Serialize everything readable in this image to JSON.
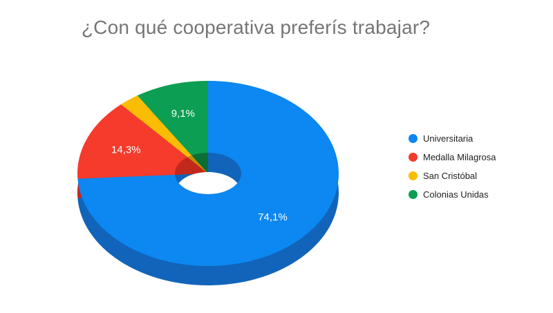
{
  "title": "¿Con qué cooperativa preferís trabajar?",
  "chart_data": {
    "type": "pie",
    "style": "3d-donut",
    "title": "¿Con qué cooperativa preferís trabajar?",
    "legend_position": "right",
    "start_angle_deg": 0,
    "direction": "clockwise",
    "slices": [
      {
        "name": "Universitaria",
        "value": 74.1,
        "label": "74,1%",
        "color": "#0D87F1",
        "dark": "#1164BA"
      },
      {
        "name": "Medalla Milagrosa",
        "value": 14.3,
        "label": "14,3%",
        "color": "#F43B2C",
        "dark": "#C2281C"
      },
      {
        "name": "San Cristóbal",
        "value": 2.5,
        "label": "",
        "color": "#FBBC04",
        "dark": "#C08E02"
      },
      {
        "name": "Colonias Unidas",
        "value": 9.1,
        "label": "9,1%",
        "color": "#0C9E52",
        "dark": "#0B6E34"
      }
    ]
  },
  "colors": {
    "background": "#ffffff",
    "title_text": "#757575",
    "legend_text": "#212121",
    "slice_label_text": "#ffffff"
  }
}
